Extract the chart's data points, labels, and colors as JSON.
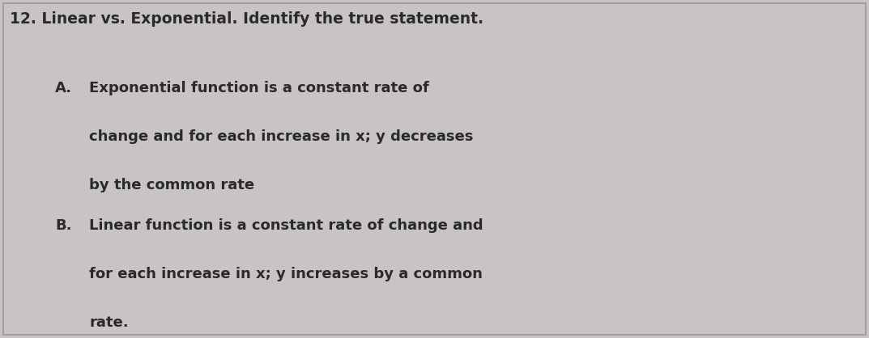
{
  "background_color": "#c8c4c4",
  "border_color": "#999999",
  "title": "12. Linear vs. Exponential. Identify the true statement.",
  "title_fontsize": 13.5,
  "title_color": "#2a2a2a",
  "option_fontsize": 13.0,
  "option_color": "#2a2a2a",
  "option_A_label": "A.",
  "option_A_line1": "Exponential function is a constant rate of",
  "option_A_line2": "change and for each increase in x; y decreases",
  "option_A_line3": "by the common rate",
  "option_B_label": "B.",
  "option_B_line1": "Linear function is a constant rate of change and",
  "option_B_line2": "for each increase in x; y increases by a common",
  "option_B_line3": "rate.",
  "figwidth": 10.73,
  "figheight": 4.18,
  "dpi": 100
}
